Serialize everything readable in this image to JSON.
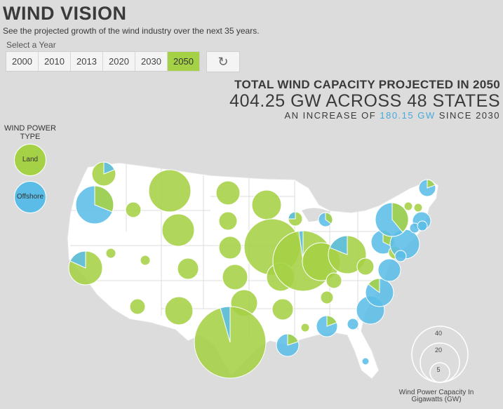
{
  "title": "WIND VISION",
  "subtitle": "See the projected growth of the wind industry over the next 35 years.",
  "select_label": "Select a Year",
  "years": [
    "2000",
    "2010",
    "2013",
    "2020",
    "2030",
    "2050"
  ],
  "active_year": "2050",
  "reset_icon": "↻",
  "headline": {
    "line1": "TOTAL WIND CAPACITY PROJECTED IN 2050",
    "line2": "404.25 GW ACROSS 48 STATES",
    "line3_prefix": "AN INCREASE OF ",
    "line3_value": "180.15 GW",
    "line3_suffix": " SINCE 2030"
  },
  "legend": {
    "title": "WIND POWER TYPE",
    "land_label": "Land Based",
    "offshore_label": "Offshore"
  },
  "scale": {
    "values": [
      "40",
      "20",
      "5"
    ],
    "label": "Wind Power Capacity In Gigawatts (GW)"
  },
  "colors": {
    "land": "#a5d146",
    "offshore": "#5bbde7",
    "map": "#ffffff",
    "background": "#dcdcdc"
  }
}
